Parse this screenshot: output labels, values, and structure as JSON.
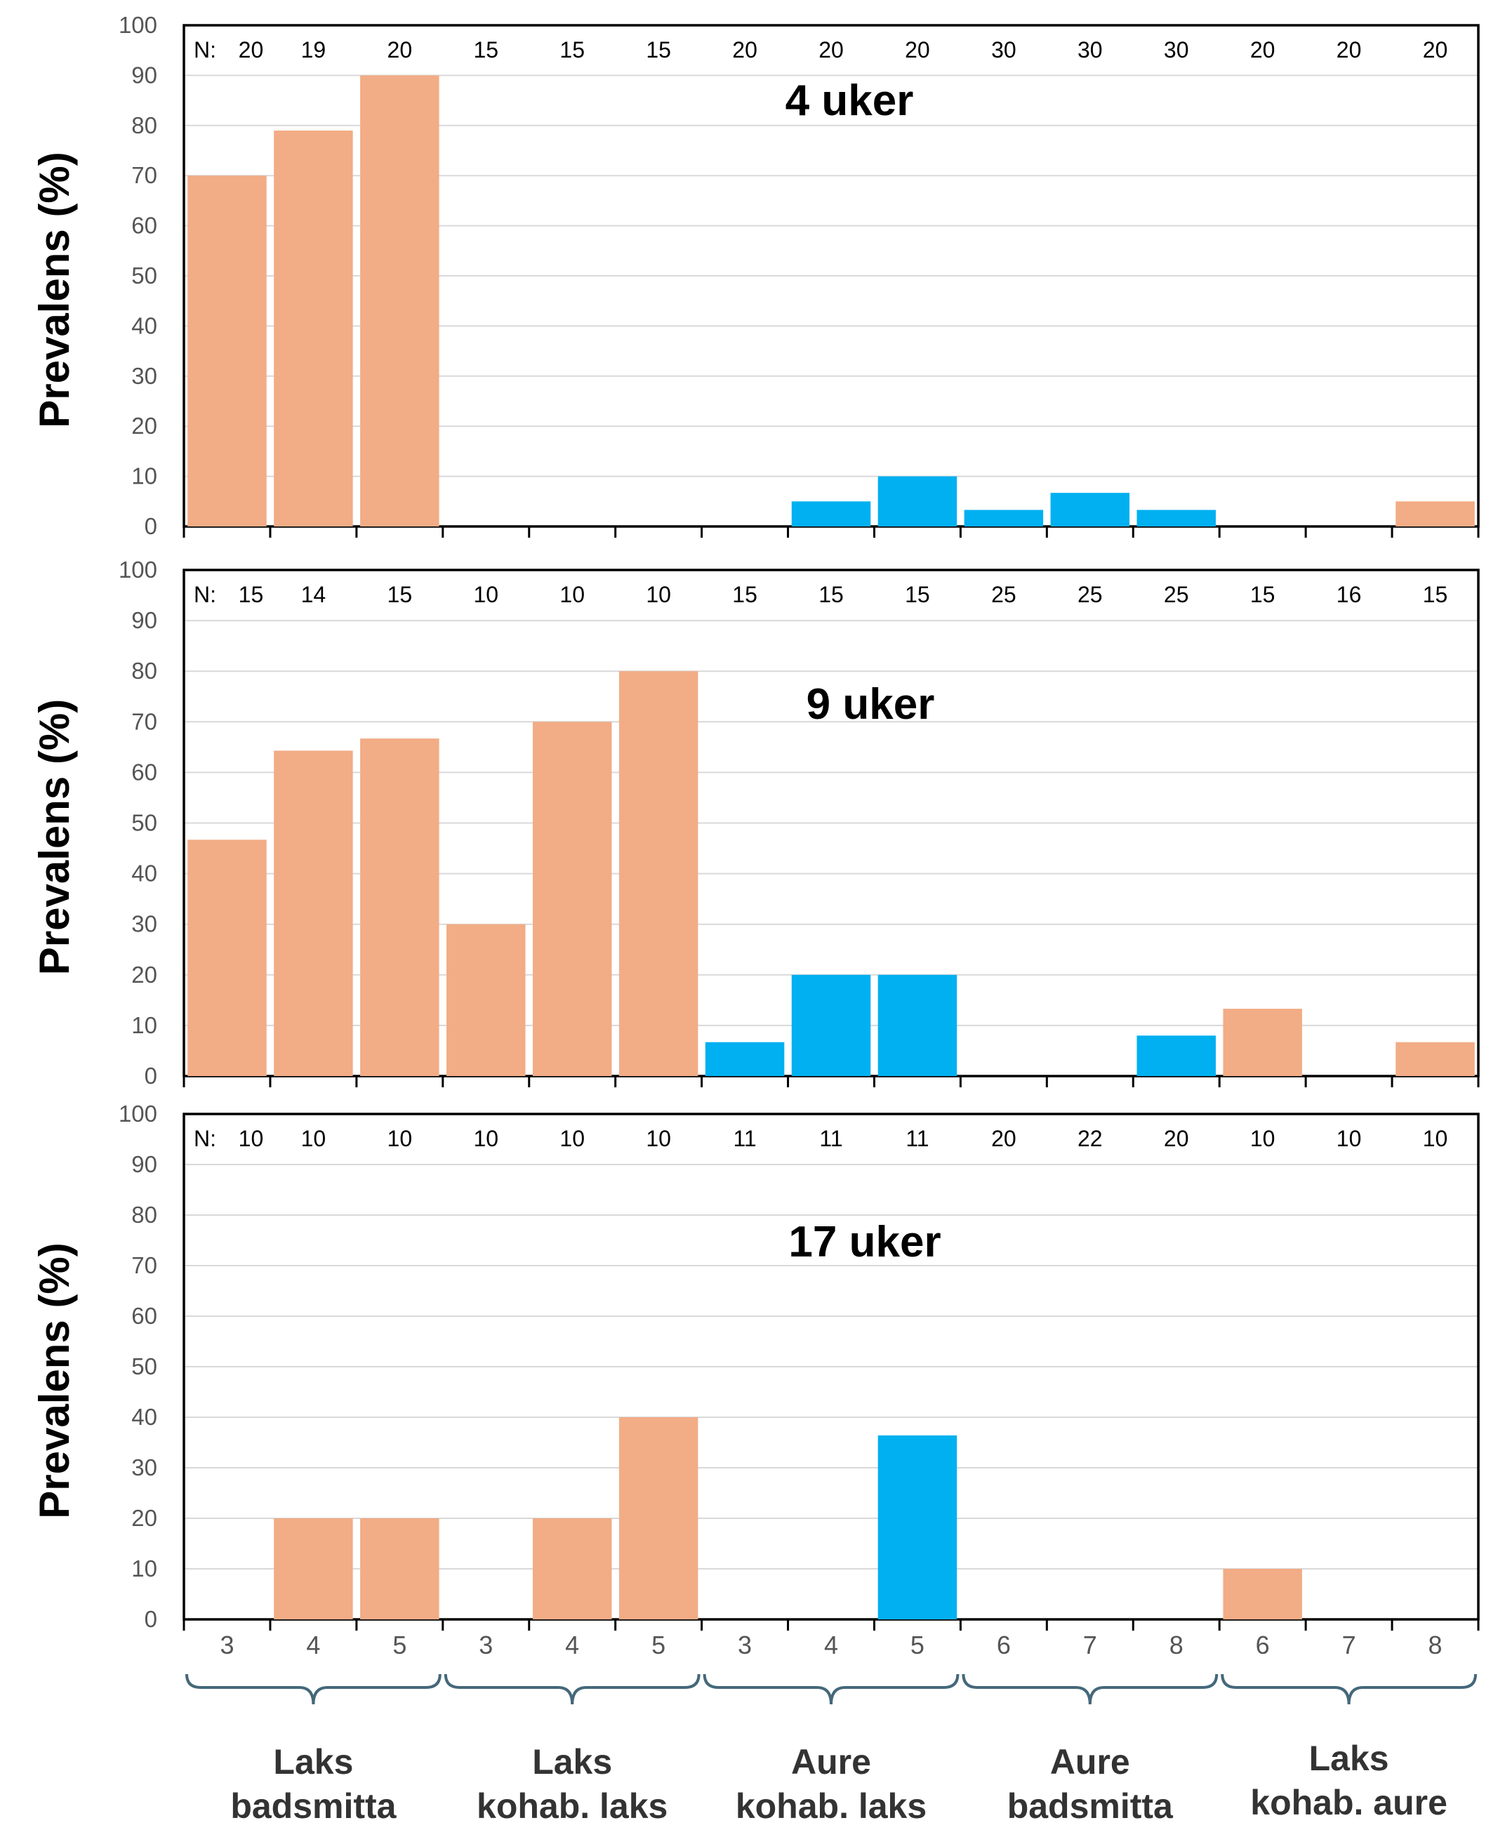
{
  "colors": {
    "laks": "#F2AC86",
    "aure": "#00B0F0",
    "grid": "#d9d9d9",
    "axis": "#000000",
    "brace": "#44687a"
  },
  "chart_data": [
    {
      "type": "bar",
      "title": "4 uker",
      "ylabel": "Prevalens (%)",
      "ylim": [
        0,
        100
      ],
      "yticks": [
        0,
        10,
        20,
        30,
        40,
        50,
        60,
        70,
        80,
        90,
        100
      ],
      "n_prefix": "N:",
      "n": [
        "20",
        "19",
        "20",
        "15",
        "15",
        "15",
        "20",
        "20",
        "20",
        "30",
        "30",
        "30",
        "20",
        "20",
        "20"
      ],
      "values": [
        70,
        79,
        90,
        0,
        0,
        0,
        0,
        5,
        10,
        3.3,
        6.7,
        3.3,
        0,
        0,
        5
      ],
      "species": [
        "laks",
        "laks",
        "laks",
        "laks",
        "laks",
        "laks",
        "aure",
        "aure",
        "aure",
        "aure",
        "aure",
        "aure",
        "laks",
        "laks",
        "laks"
      ]
    },
    {
      "type": "bar",
      "title": "9 uker",
      "ylabel": "Prevalens (%)",
      "ylim": [
        0,
        100
      ],
      "yticks": [
        0,
        10,
        20,
        30,
        40,
        50,
        60,
        70,
        80,
        90,
        100
      ],
      "n_prefix": "N:",
      "n": [
        "15",
        "14",
        "15",
        "10",
        "10",
        "10",
        "15",
        "15",
        "15",
        "25",
        "25",
        "25",
        "15",
        "16",
        "15"
      ],
      "values": [
        46.7,
        64.3,
        66.7,
        30,
        70,
        80,
        6.7,
        20,
        20,
        0,
        0,
        8,
        13.3,
        0,
        6.7
      ],
      "species": [
        "laks",
        "laks",
        "laks",
        "laks",
        "laks",
        "laks",
        "aure",
        "aure",
        "aure",
        "aure",
        "aure",
        "aure",
        "laks",
        "laks",
        "laks"
      ]
    },
    {
      "type": "bar",
      "title": "17 uker",
      "ylabel": "Prevalens (%)",
      "ylim": [
        0,
        100
      ],
      "yticks": [
        0,
        10,
        20,
        30,
        40,
        50,
        60,
        70,
        80,
        90,
        100
      ],
      "n_prefix": "N:",
      "n": [
        "10",
        "10",
        "10",
        "10",
        "10",
        "10",
        "11",
        "11",
        "11",
        "20",
        "22",
        "20",
        "10",
        "10",
        "10"
      ],
      "values": [
        0,
        20,
        20,
        0,
        20,
        40,
        0,
        0,
        36.4,
        0,
        0,
        0,
        10,
        0,
        0
      ],
      "species": [
        "laks",
        "laks",
        "laks",
        "laks",
        "laks",
        "laks",
        "aure",
        "aure",
        "aure",
        "aure",
        "aure",
        "aure",
        "laks",
        "laks",
        "laks"
      ]
    }
  ],
  "categories": [
    "3",
    "4",
    "5",
    "3",
    "4",
    "5",
    "3",
    "4",
    "5",
    "6",
    "7",
    "8",
    "6",
    "7",
    "8"
  ],
  "groups": [
    {
      "line1": "Laks",
      "line2": "badsmitta"
    },
    {
      "line1": "Laks",
      "line2": "kohab. laks"
    },
    {
      "line1": "Aure",
      "line2": "kohab. laks"
    },
    {
      "line1": "Aure",
      "line2": "badsmitta"
    },
    {
      "line1": "Laks",
      "line2": "kohab. aure"
    }
  ]
}
